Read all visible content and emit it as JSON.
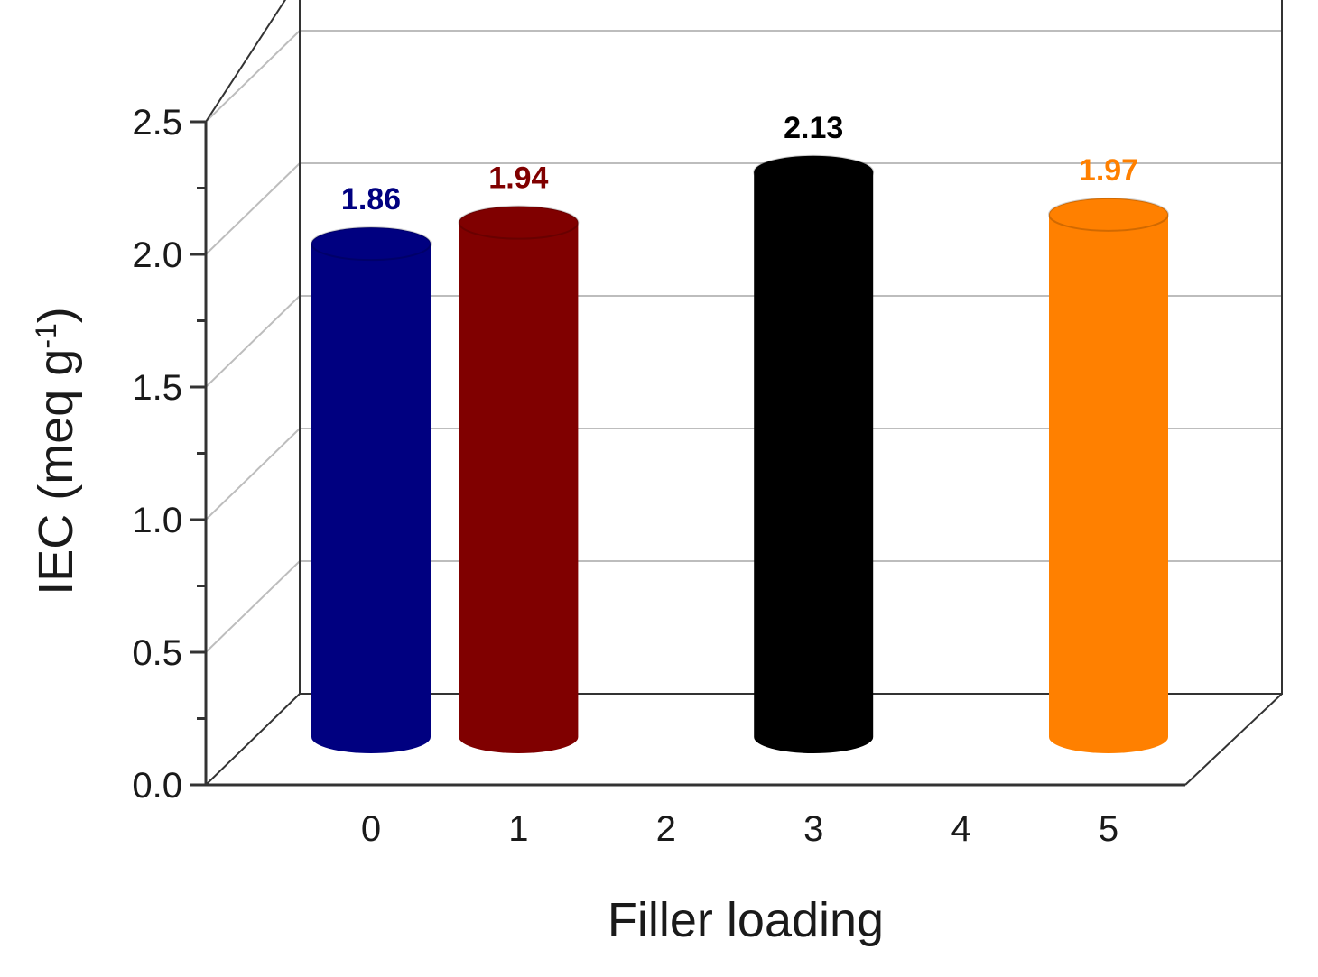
{
  "chart_data": {
    "type": "bar",
    "style": "3d-cylinder",
    "categories": [
      "0",
      "1",
      "2",
      "3",
      "4",
      "5"
    ],
    "values": [
      1.86,
      1.94,
      null,
      2.13,
      null,
      1.97
    ],
    "data_labels": [
      "1.86",
      "1.94",
      "",
      "2.13",
      "",
      "1.97"
    ],
    "colors": [
      "#000080",
      "#800000",
      "",
      "#000000",
      "",
      "#ff8000"
    ],
    "title": "",
    "xlabel": "Filler loading",
    "ylabel_main": "IEC (meq g",
    "ylabel_sup": "-1",
    "ylabel_close": ")",
    "ylim": [
      0,
      2.5
    ],
    "yticks": [
      "0.0",
      "0.5",
      "1.0",
      "1.5",
      "2.0",
      "2.5"
    ],
    "grid": true,
    "legend": "none"
  }
}
